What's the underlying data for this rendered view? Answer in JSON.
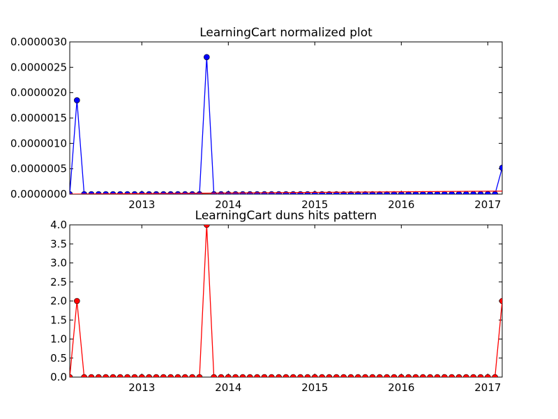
{
  "chart_data": [
    {
      "type": "line",
      "title": "LearningCart normalized plot",
      "xlabel": "",
      "ylabel": "",
      "x_axis": "date",
      "xlim": [
        "2012-03",
        "2017-03"
      ],
      "ylim": [
        0,
        3e-06
      ],
      "y_ticks": [
        "0.0000000",
        "0.0000005",
        "0.0000010",
        "0.0000015",
        "0.0000020",
        "0.0000025",
        "0.0000030"
      ],
      "x_ticks": [
        "2013",
        "2014",
        "2015",
        "2016",
        "2017"
      ],
      "grid": false,
      "series": [
        {
          "color": "#0000ff",
          "marker_color": "#0000ff",
          "marker": "circle",
          "x": [
            "2012-03",
            "2012-04",
            "2012-05",
            "2012-06",
            "2012-07",
            "2012-08",
            "2012-09",
            "2012-10",
            "2012-11",
            "2012-12",
            "2013-01",
            "2013-02",
            "2013-03",
            "2013-04",
            "2013-05",
            "2013-06",
            "2013-07",
            "2013-08",
            "2013-09",
            "2013-10",
            "2013-11",
            "2013-12",
            "2014-01",
            "2014-02",
            "2014-03",
            "2014-04",
            "2014-05",
            "2014-06",
            "2014-07",
            "2014-08",
            "2014-09",
            "2014-10",
            "2014-11",
            "2014-12",
            "2015-01",
            "2015-02",
            "2015-03",
            "2015-04",
            "2015-05",
            "2015-06",
            "2015-07",
            "2015-08",
            "2015-09",
            "2015-10",
            "2015-11",
            "2015-12",
            "2016-01",
            "2016-02",
            "2016-03",
            "2016-04",
            "2016-05",
            "2016-06",
            "2016-07",
            "2016-08",
            "2016-09",
            "2016-10",
            "2016-11",
            "2016-12",
            "2017-01",
            "2017-02",
            "2017-03"
          ],
          "values": [
            0,
            1.85e-06,
            0,
            0,
            0,
            0,
            0,
            0,
            0,
            0,
            0,
            0,
            0,
            0,
            0,
            0,
            0,
            0,
            0,
            2.7e-06,
            0,
            0,
            0,
            0,
            0,
            0,
            0,
            0,
            0,
            0,
            0,
            0,
            0,
            0,
            0,
            0,
            0,
            0,
            0,
            0,
            0,
            0,
            0,
            0,
            0,
            0,
            0,
            0,
            0,
            0,
            0,
            0,
            0,
            0,
            0,
            0,
            0,
            0,
            0,
            0,
            5.2e-07
          ]
        },
        {
          "color": "#ff0000",
          "marker": "none",
          "x": [
            "2012-03",
            "2017-03"
          ],
          "values": [
            0,
            6e-08
          ]
        }
      ]
    },
    {
      "type": "line",
      "title": "LearningCart duns hits pattern",
      "xlabel": "",
      "ylabel": "",
      "x_axis": "date",
      "xlim": [
        "2012-03",
        "2017-03"
      ],
      "ylim": [
        0,
        4.0
      ],
      "y_ticks": [
        "0.0",
        "0.5",
        "1.0",
        "1.5",
        "2.0",
        "2.5",
        "3.0",
        "3.5",
        "4.0"
      ],
      "x_ticks": [
        "2013",
        "2014",
        "2015",
        "2016",
        "2017"
      ],
      "grid": false,
      "series": [
        {
          "color": "#ff0000",
          "marker_color": "#ff0000",
          "marker": "circle",
          "x": [
            "2012-03",
            "2012-04",
            "2012-05",
            "2012-06",
            "2012-07",
            "2012-08",
            "2012-09",
            "2012-10",
            "2012-11",
            "2012-12",
            "2013-01",
            "2013-02",
            "2013-03",
            "2013-04",
            "2013-05",
            "2013-06",
            "2013-07",
            "2013-08",
            "2013-09",
            "2013-10",
            "2013-11",
            "2013-12",
            "2014-01",
            "2014-02",
            "2014-03",
            "2014-04",
            "2014-05",
            "2014-06",
            "2014-07",
            "2014-08",
            "2014-09",
            "2014-10",
            "2014-11",
            "2014-12",
            "2015-01",
            "2015-02",
            "2015-03",
            "2015-04",
            "2015-05",
            "2015-06",
            "2015-07",
            "2015-08",
            "2015-09",
            "2015-10",
            "2015-11",
            "2015-12",
            "2016-01",
            "2016-02",
            "2016-03",
            "2016-04",
            "2016-05",
            "2016-06",
            "2016-07",
            "2016-08",
            "2016-09",
            "2016-10",
            "2016-11",
            "2016-12",
            "2017-01",
            "2017-02",
            "2017-03"
          ],
          "values": [
            0,
            2,
            0,
            0,
            0,
            0,
            0,
            0,
            0,
            0,
            0,
            0,
            0,
            0,
            0,
            0,
            0,
            0,
            0,
            4,
            0,
            0,
            0,
            0,
            0,
            0,
            0,
            0,
            0,
            0,
            0,
            0,
            0,
            0,
            0,
            0,
            0,
            0,
            0,
            0,
            0,
            0,
            0,
            0,
            0,
            0,
            0,
            0,
            0,
            0,
            0,
            0,
            0,
            0,
            0,
            0,
            0,
            0,
            0,
            0,
            2
          ]
        }
      ]
    }
  ]
}
